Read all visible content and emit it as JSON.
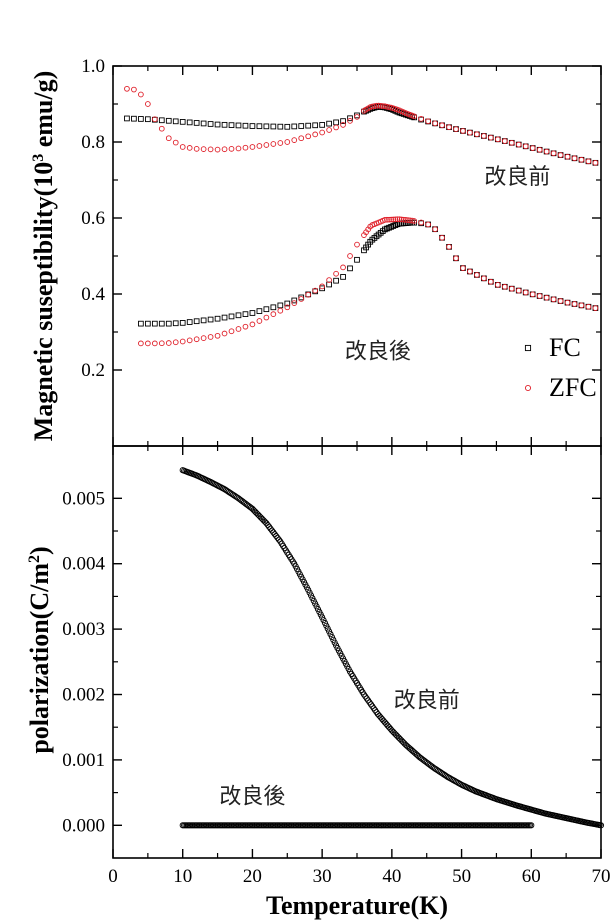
{
  "chart_data": [
    {
      "type": "scatter",
      "panel": "top",
      "title": "",
      "ylabel": "Magnetic suseptibility(10",
      "ylabel_sup": "3",
      "ylabel_unit": " emu/g)",
      "xlim": [
        0,
        70
      ],
      "ylim": [
        0,
        1.0
      ],
      "yticks": [
        0.2,
        0.4,
        0.6,
        0.8,
        1.0
      ],
      "ytick_labels": [
        "0.2",
        "0.4",
        "0.6",
        "0.8",
        "1.0"
      ],
      "legend": {
        "position": "bottom-right",
        "entries": [
          "FC",
          "ZFC"
        ]
      },
      "annotations": [
        {
          "text": "改良前",
          "x": 58,
          "y": 0.69
        },
        {
          "text": "改良後",
          "x": 38,
          "y": 0.23
        }
      ],
      "series": [
        {
          "name": "FC",
          "marker": "square",
          "color": "#000000",
          "group": "改良前",
          "x": [
            2,
            5,
            10,
            15,
            20,
            25,
            30,
            33,
            35,
            36,
            37,
            38,
            39,
            40,
            41,
            42,
            44,
            46,
            48,
            50,
            55,
            60,
            65,
            70
          ],
          "y": [
            0.862,
            0.86,
            0.853,
            0.846,
            0.842,
            0.84,
            0.845,
            0.855,
            0.87,
            0.88,
            0.888,
            0.893,
            0.891,
            0.886,
            0.878,
            0.872,
            0.86,
            0.85,
            0.84,
            0.83,
            0.808,
            0.785,
            0.762,
            0.742
          ]
        },
        {
          "name": "ZFC",
          "marker": "circle",
          "color": "#e0202a",
          "group": "改良前",
          "x": [
            2,
            3,
            4,
            5,
            6,
            8,
            10,
            12,
            15,
            18,
            20,
            25,
            30,
            33,
            35,
            36,
            37,
            38,
            39,
            40,
            41,
            42,
            44,
            46,
            48,
            50,
            55,
            60,
            65,
            70
          ],
          "y": [
            0.94,
            0.938,
            0.925,
            0.9,
            0.86,
            0.81,
            0.787,
            0.782,
            0.78,
            0.783,
            0.787,
            0.8,
            0.825,
            0.845,
            0.866,
            0.882,
            0.893,
            0.896,
            0.894,
            0.89,
            0.884,
            0.876,
            0.862,
            0.85,
            0.84,
            0.83,
            0.808,
            0.785,
            0.762,
            0.742
          ]
        },
        {
          "name": "FC",
          "marker": "square",
          "color": "#000000",
          "group": "改良後",
          "x": [
            4,
            6,
            8,
            10,
            15,
            20,
            25,
            30,
            33,
            35,
            37,
            39,
            41,
            43,
            45,
            46,
            48,
            50,
            55,
            60,
            65,
            70
          ],
          "y": [
            0.322,
            0.322,
            0.322,
            0.324,
            0.335,
            0.35,
            0.375,
            0.415,
            0.445,
            0.49,
            0.54,
            0.57,
            0.585,
            0.588,
            0.585,
            0.575,
            0.53,
            0.47,
            0.425,
            0.4,
            0.378,
            0.36
          ]
        },
        {
          "name": "ZFC",
          "marker": "circle",
          "color": "#e0202a",
          "group": "改良後",
          "x": [
            4,
            6,
            8,
            10,
            15,
            20,
            25,
            30,
            33,
            35,
            37,
            39,
            41,
            43,
            45,
            46,
            48,
            50,
            55,
            60,
            65,
            70
          ],
          "y": [
            0.27,
            0.27,
            0.271,
            0.275,
            0.29,
            0.32,
            0.365,
            0.42,
            0.47,
            0.53,
            0.58,
            0.595,
            0.597,
            0.593,
            0.585,
            0.575,
            0.53,
            0.47,
            0.425,
            0.4,
            0.378,
            0.36
          ]
        }
      ]
    },
    {
      "type": "scatter",
      "panel": "bottom",
      "title": "",
      "xlabel": "Temperature(K)",
      "ylabel": "polarization(C/m",
      "ylabel_sup": "2",
      "ylabel_unit": ")",
      "xlim": [
        0,
        70
      ],
      "ylim": [
        -0.0005,
        0.0058
      ],
      "xticks": [
        0,
        10,
        20,
        30,
        40,
        50,
        60,
        70
      ],
      "xtick_labels": [
        "0",
        "10",
        "20",
        "30",
        "40",
        "50",
        "60",
        "70"
      ],
      "yticks": [
        0.0,
        0.001,
        0.002,
        0.003,
        0.004,
        0.005
      ],
      "ytick_labels": [
        "0.000",
        "0.001",
        "0.002",
        "0.003",
        "0.004",
        "0.005"
      ],
      "annotations": [
        {
          "text": "改良前",
          "x": 45,
          "y": 0.0018
        },
        {
          "text": "改良後",
          "x": 20,
          "y": 0.00033
        }
      ],
      "series": [
        {
          "marker": "circle",
          "color": "#000000",
          "group": "改良前",
          "x": [
            10,
            12,
            14,
            16,
            18,
            20,
            22,
            24,
            26,
            28,
            30,
            32,
            34,
            36,
            38,
            40,
            42,
            44,
            46,
            48,
            50,
            52,
            55,
            58,
            60,
            62,
            65,
            68,
            70
          ],
          "y": [
            0.00543,
            0.00535,
            0.00525,
            0.00514,
            0.005,
            0.00484,
            0.00462,
            0.00434,
            0.004,
            0.0036,
            0.00318,
            0.00275,
            0.00235,
            0.002,
            0.0017,
            0.00145,
            0.00123,
            0.00104,
            0.00088,
            0.00074,
            0.00062,
            0.00052,
            0.0004,
            0.0003,
            0.00024,
            0.00018,
            0.00011,
            4e-05,
            0.0
          ]
        },
        {
          "marker": "circle",
          "color": "#000000",
          "group": "改良後",
          "x": [
            10,
            60
          ],
          "y": [
            0.0,
            0.0
          ]
        }
      ]
    }
  ]
}
